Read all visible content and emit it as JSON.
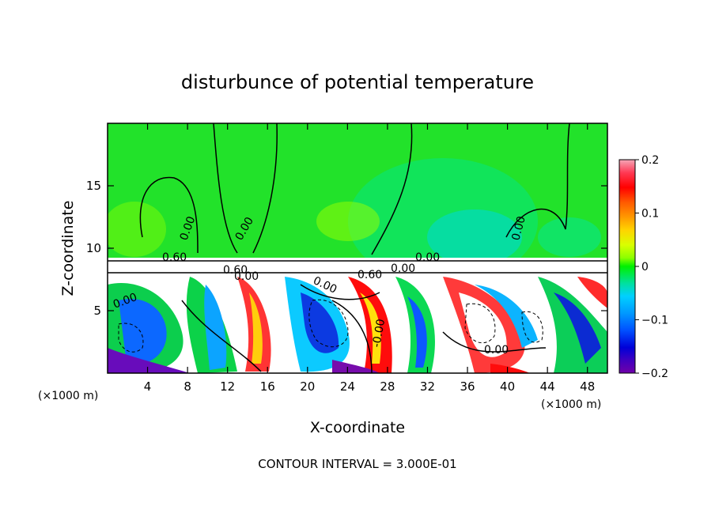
{
  "chart_data": {
    "type": "heatmap",
    "title": "disturbunce of potential temperature",
    "xlabel": "X-coordinate",
    "ylabel": "Z-coordinate",
    "x_unit": "(×1000 m)",
    "y_unit": "(×1000 m)",
    "footer": "CONTOUR INTERVAL = 3.000E-01",
    "xlim": [
      0,
      50
    ],
    "ylim": [
      0,
      20
    ],
    "x_ticks": [
      4,
      8,
      12,
      16,
      20,
      24,
      28,
      32,
      36,
      40,
      44,
      48
    ],
    "y_ticks": [
      5,
      10,
      15
    ],
    "colorbar": {
      "vmin": -0.2,
      "vmax": 0.2,
      "tick_values": [
        0.2,
        0.1,
        0,
        -0.1,
        -0.2
      ],
      "tick_labels": [
        "0.2",
        "0.1",
        "0",
        "−0.1",
        "−0.2"
      ],
      "colors": [
        "#f5a6b8",
        "#ff3a55",
        "#ff0000",
        "#ff5a00",
        "#ff9a00",
        "#ffd400",
        "#d9ff00",
        "#8cff00",
        "#00f000",
        "#00e0a0",
        "#00d0ff",
        "#0098ff",
        "#0050ff",
        "#0000d8",
        "#4000c0",
        "#7000a8"
      ]
    },
    "contour_labels": [
      "0.00",
      "0.00",
      "0.60",
      "0.00",
      "0.00",
      "0.60",
      "0.00",
      "0.00",
      "0.00",
      "-0.00",
      "0.00",
      "0.00",
      "0.60"
    ],
    "upper_region_background": "#22e22a",
    "boundary_height_z": 9.2
  }
}
